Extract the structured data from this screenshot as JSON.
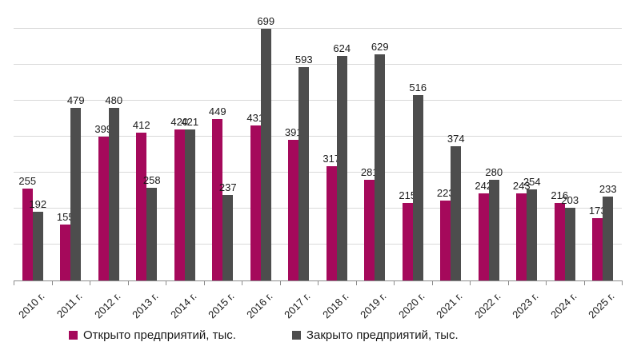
{
  "chart_data": {
    "type": "bar",
    "title": "",
    "xlabel": "",
    "ylabel": "",
    "categories": [
      "2010 г.",
      "2011 г.",
      "2012 г.",
      "2013 г.",
      "2014 г.",
      "2015 г.",
      "2016 г.",
      "2017 г.",
      "2018 г.",
      "2019 г.",
      "2020 г.",
      "2021 г.",
      "2022 г.",
      "2023 г.",
      "2024 г.",
      "2025 г."
    ],
    "series": [
      {
        "name": "Открыто предприятий, тыс.",
        "key": "opened",
        "color": "#a5095b",
        "values": [
          255,
          155,
          399,
          412,
          420,
          449,
          431,
          391,
          317,
          281,
          215,
          223,
          242,
          243,
          216,
          173
        ]
      },
      {
        "name": "Закрыто предприятий, тыс.",
        "key": "closed",
        "color": "#4d4d4d",
        "values": [
          192,
          479,
          480,
          258,
          421,
          237,
          699,
          593,
          624,
          629,
          516,
          374,
          280,
          254,
          203,
          233
        ]
      }
    ],
    "ylim": [
      0,
      700
    ],
    "gridline_step": 100,
    "y_axis_labels_visible": false,
    "grid": true,
    "data_labels_visible": true,
    "legend_position": "bottom",
    "colors": {
      "gridline": "#d9d9d9",
      "axis": "#8c8c8c",
      "label_text": "#1a1a1a"
    }
  }
}
